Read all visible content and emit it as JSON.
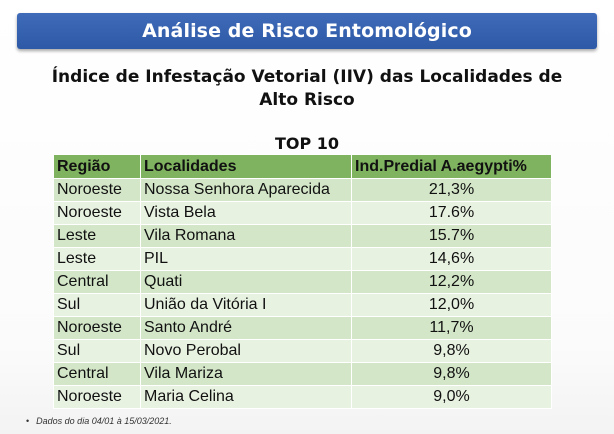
{
  "banner": {
    "title": "Análise de Risco Entomológico"
  },
  "heading": {
    "line1": "Índice de Infestação Vetorial (IIV) das Localidades de",
    "line2": "Alto Risco"
  },
  "subheading": "TOP 10",
  "table": {
    "headers": [
      "Região",
      "Localidades",
      "Ind.Predial A.aegypti%"
    ],
    "rows": [
      {
        "regiao": "Noroeste",
        "localidade": "Nossa Senhora Aparecida",
        "indice": "21,3%"
      },
      {
        "regiao": "Noroeste",
        "localidade": "Vista Bela",
        "indice": "17.6%"
      },
      {
        "regiao": "Leste",
        "localidade": "Vila Romana",
        "indice": "15.7%"
      },
      {
        "regiao": "Leste",
        "localidade": "PIL",
        "indice": "14,6%"
      },
      {
        "regiao": "Central",
        "localidade": "Quati",
        "indice": "12,2%"
      },
      {
        "regiao": "Sul",
        "localidade": "União da Vitória I",
        "indice": "12,0%"
      },
      {
        "regiao": "Noroeste",
        "localidade": "Santo André",
        "indice": "11,7%"
      },
      {
        "regiao": "Sul",
        "localidade": "Novo Perobal",
        "indice": "9,8%"
      },
      {
        "regiao": "Central",
        "localidade": "Vila Mariza",
        "indice": "9,8%"
      },
      {
        "regiao": "Noroeste",
        "localidade": "Maria Celina",
        "indice": "9,0%"
      }
    ]
  },
  "footnote": {
    "bullet": "•",
    "text": "Dados do dia 04/01 à 15/03/2021."
  },
  "colors": {
    "banner": "#2d59a6",
    "table_header": "#7fb35f",
    "row_odd": "#d3e6c8",
    "row_even": "#e8f2e1"
  }
}
